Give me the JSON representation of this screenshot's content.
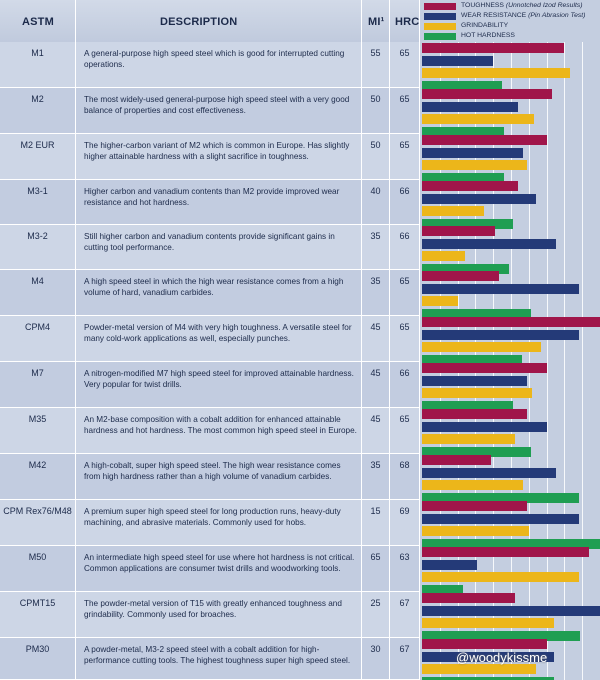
{
  "header": {
    "astm": "ASTM",
    "description": "DESCRIPTION",
    "mi": "MI¹",
    "hrc": "HRC"
  },
  "legend": [
    {
      "label": "TOUGHNESS",
      "note": "(Unnotched Izod Results)",
      "color": "#a0154a"
    },
    {
      "label": "WEAR RESISTANCE",
      "note": "(Pin Abrasion Test)",
      "color": "#243a78"
    },
    {
      "label": "GRINDABILITY",
      "note": "",
      "color": "#ecb61a"
    },
    {
      "label": "HOT HARDNESS",
      "note": "",
      "color": "#1f9e52"
    }
  ],
  "watermark": "@woodykissme",
  "chart_data": {
    "type": "bar",
    "orientation": "horizontal",
    "columns": [
      "ASTM",
      "DESCRIPTION",
      "MI¹",
      "HRC"
    ],
    "series": [
      {
        "name": "TOUGHNESS",
        "color": "#a0154a"
      },
      {
        "name": "WEAR RESISTANCE",
        "color": "#243a78"
      },
      {
        "name": "GRINDABILITY",
        "color": "#ecb61a"
      },
      {
        "name": "HOT HARDNESS",
        "color": "#1f9e52"
      }
    ],
    "scale_max": 10,
    "rows": [
      {
        "astm": "M1",
        "description": "A general-purpose high speed steel which is good for interrupted cutting operations.",
        "mi": "55",
        "hrc": "65",
        "values": [
          8,
          4,
          8.3,
          4.5
        ]
      },
      {
        "astm": "M2",
        "description": "The most widely-used general-purpose high speed steel with a very good balance of properties and cost effectiveness.",
        "mi": "50",
        "hrc": "65",
        "values": [
          7.3,
          5.4,
          6.3,
          4.6
        ]
      },
      {
        "astm": "M2 EUR",
        "description": "The higher-carbon variant of M2 which is common in Europe. Has slightly higher attainable hardness with a slight sacrifice in toughness.",
        "mi": "50",
        "hrc": "65",
        "values": [
          7,
          5.7,
          5.9,
          4.6
        ]
      },
      {
        "astm": "M3-1",
        "description": "Higher carbon and vanadium contents than M2 provide improved wear resistance and hot hardness.",
        "mi": "40",
        "hrc": "66",
        "values": [
          5.4,
          6.4,
          3.5,
          5.1
        ]
      },
      {
        "astm": "M3-2",
        "description": "Still higher carbon and vanadium contents provide significant gains in cutting tool performance.",
        "mi": "35",
        "hrc": "66",
        "values": [
          4.1,
          7.5,
          2.4,
          4.9
        ]
      },
      {
        "astm": "M4",
        "description": "A high speed steel in which the high wear resistance comes from a high volume of hard, vanadium carbides.",
        "mi": "35",
        "hrc": "65",
        "values": [
          4.3,
          8.8,
          2,
          6.1
        ]
      },
      {
        "astm": "CPM4",
        "description": "Powder-metal version of M4 with very high toughness. A versatile steel for many cold-work applications as well, especially punches.",
        "mi": "45",
        "hrc": "65",
        "values": [
          10,
          8.8,
          6.7,
          5.6
        ]
      },
      {
        "astm": "M7",
        "description": "A nitrogen-modified M7 high speed steel for improved attainable hardness. Very popular for twist drills.",
        "mi": "45",
        "hrc": "66",
        "values": [
          7,
          5.9,
          6.2,
          5.1
        ]
      },
      {
        "astm": "M35",
        "description": "An M2-base composition with a cobalt addition for enhanced attainable hardness and hot hardness. The most common high speed steel in Europe.",
        "mi": "45",
        "hrc": "65",
        "values": [
          5.9,
          7,
          5.2,
          6.1
        ]
      },
      {
        "astm": "M42",
        "description": "A high-cobalt, super high speed steel. The high wear resistance comes from high hardness rather than a high volume of vanadium carbides.",
        "mi": "35",
        "hrc": "68",
        "values": [
          3.9,
          7.5,
          5.7,
          8.8
        ]
      },
      {
        "astm": "CPM Rex76/M48",
        "description": "A premium super high speed steel for long production runs, heavy-duty machining, and abrasive materials. Commonly used for hobs.",
        "mi": "15",
        "hrc": "69",
        "values": [
          5.9,
          8.8,
          6,
          10
        ]
      },
      {
        "astm": "M50",
        "description": "An intermediate high speed steel for use where hot hardness is not critical. Common applications are consumer twist drills and woodworking tools.",
        "mi": "65",
        "hrc": "63",
        "values": [
          9.4,
          3.1,
          8.8,
          2.3
        ]
      },
      {
        "astm": "CPMT15",
        "description": "The powder-metal version of T15 with greatly enhanced toughness and grindability. Commonly used for broaches.",
        "mi": "25",
        "hrc": "67",
        "values": [
          5.2,
          10,
          7.4,
          8.9
        ]
      },
      {
        "astm": "PM30",
        "description": "A powder-metal, M3-2 speed steel with a cobalt addition for high-performance cutting tools. The highest toughness super high speed steel.",
        "mi": "30",
        "hrc": "67",
        "values": [
          7,
          7.4,
          6.4,
          7.4
        ]
      }
    ]
  }
}
